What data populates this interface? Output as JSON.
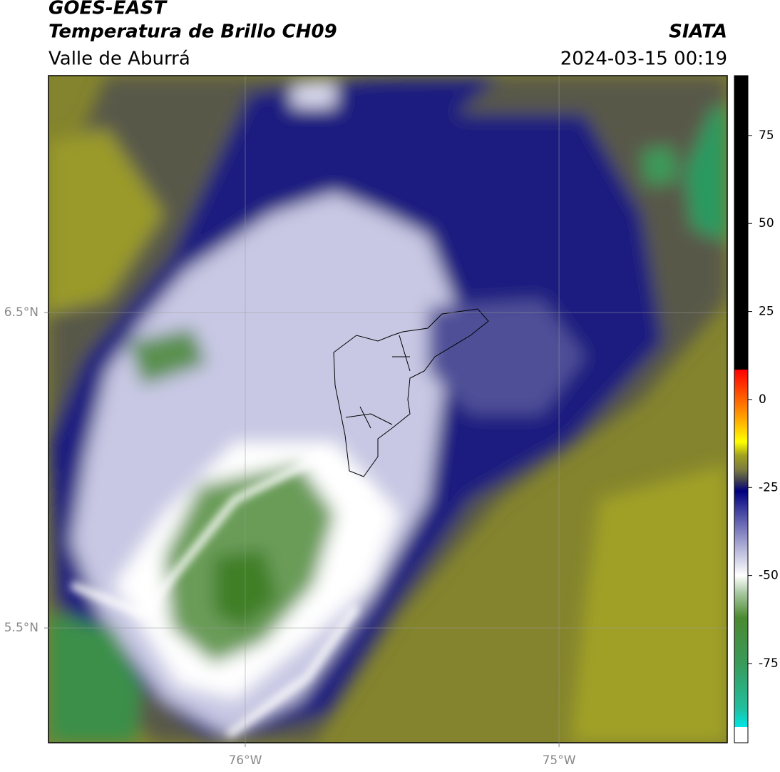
{
  "header": {
    "title": "GOES-EAST",
    "subtitle": "Temperatura de Brillo CH09",
    "region": "Valle de Aburrá",
    "source": "SIATA",
    "timestamp": "2024-03-15 00:19"
  },
  "map": {
    "xlim": [
      -76.627,
      -74.464
    ],
    "ylim": [
      5.136,
      7.251
    ],
    "xticks": [
      {
        "value": -76,
        "label": "76°W"
      },
      {
        "value": -75,
        "label": "75°W"
      }
    ],
    "yticks": [
      {
        "value": 6.5,
        "label": "6.5°N"
      },
      {
        "value": 5.5,
        "label": "5.5°N"
      }
    ],
    "grid": true
  },
  "colorbar": {
    "lim": [
      -97.5,
      92
    ],
    "ticks": [
      75,
      50,
      25,
      0,
      -25,
      -50,
      -75
    ],
    "stops": [
      {
        "value": 92,
        "color": "#000000"
      },
      {
        "value": 8.5,
        "color": "#000000"
      },
      {
        "value": 8.5,
        "color": "#ff0000"
      },
      {
        "value": 3,
        "color": "#ff4000"
      },
      {
        "value": -5,
        "color": "#ffa000"
      },
      {
        "value": -12,
        "color": "#ffff00"
      },
      {
        "value": -16,
        "color": "#a0a020"
      },
      {
        "value": -20,
        "color": "#7a7a40"
      },
      {
        "value": -23,
        "color": "#404050"
      },
      {
        "value": -26,
        "color": "#00007f"
      },
      {
        "value": -33,
        "color": "#5050a8"
      },
      {
        "value": -42,
        "color": "#b0b0d8"
      },
      {
        "value": -50,
        "color": "#ffffff"
      },
      {
        "value": -55,
        "color": "#a8c8a0"
      },
      {
        "value": -62,
        "color": "#4a8a30"
      },
      {
        "value": -75,
        "color": "#3a9a5a"
      },
      {
        "value": -88,
        "color": "#20c0a0"
      },
      {
        "value": -93,
        "color": "#00e5e5"
      },
      {
        "value": -93,
        "color": "#ffffff"
      },
      {
        "value": -97.5,
        "color": "#ffffff"
      }
    ]
  }
}
